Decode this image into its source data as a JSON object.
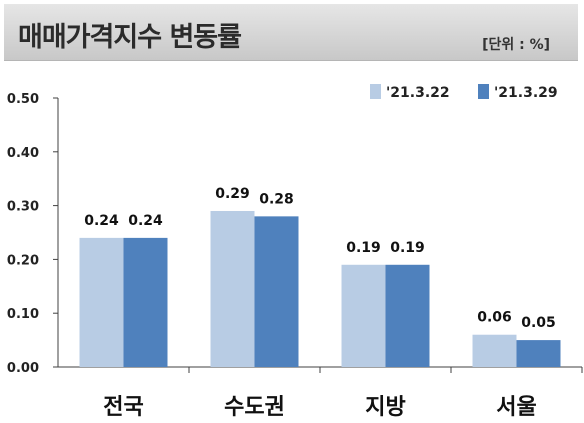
{
  "header": {
    "title": "매매가격지수 변동률",
    "unit": "[단위 : %]"
  },
  "colors": {
    "series1": "#b8cce4",
    "series2": "#4f81bd",
    "axis": "#404040"
  },
  "chart_data": {
    "type": "bar",
    "title": "매매가격지수 변동률",
    "categories": [
      "전국",
      "수도권",
      "지방",
      "서울"
    ],
    "series": [
      {
        "name": "'21.3.22",
        "values": [
          0.24,
          0.29,
          0.19,
          0.06
        ]
      },
      {
        "name": "'21.3.29",
        "values": [
          0.24,
          0.28,
          0.19,
          0.05
        ]
      }
    ],
    "ylim": [
      0,
      0.5
    ],
    "yticks": [
      "0.00",
      "0.10",
      "0.20",
      "0.30",
      "0.40",
      "0.50"
    ],
    "value_labels": [
      [
        "0.24",
        "0.29",
        "0.19",
        "0.06"
      ],
      [
        "0.24",
        "0.28",
        "0.19",
        "0.05"
      ]
    ],
    "legend_position": "top-right",
    "grid": false
  }
}
